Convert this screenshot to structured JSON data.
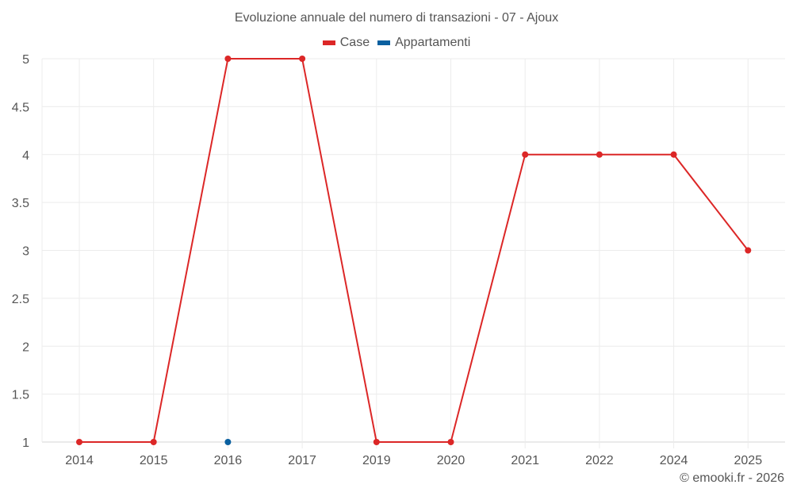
{
  "chart_data": {
    "type": "line",
    "title": "Evoluzione annuale del numero di transazioni - 07 - Ajoux",
    "categories": [
      "2014",
      "2015",
      "2016",
      "2017",
      "2019",
      "2020",
      "2021",
      "2022",
      "2024",
      "2025"
    ],
    "series": [
      {
        "name": "Case",
        "color": "#dc2727",
        "values": [
          1,
          1,
          5,
          5,
          1,
          1,
          4,
          4,
          4,
          3
        ]
      },
      {
        "name": "Appartamenti",
        "color": "#0a60a0",
        "values": [
          null,
          null,
          1,
          null,
          null,
          null,
          null,
          null,
          null,
          null
        ]
      }
    ],
    "xlabel": "",
    "ylabel": "",
    "ylim": [
      1,
      5
    ],
    "yticks": [
      "1",
      "1.5",
      "2",
      "2.5",
      "3",
      "3.5",
      "4",
      "4.5",
      "5"
    ],
    "grid": true,
    "legend_position": "top"
  },
  "header": {
    "title": "Evoluzione annuale del numero di transazioni - 07 - Ajoux"
  },
  "legend": {
    "items": [
      {
        "label": "Case",
        "color": "#dc2727"
      },
      {
        "label": "Appartamenti",
        "color": "#0a60a0"
      }
    ]
  },
  "footer": {
    "credit": "© emooki.fr - 2026"
  }
}
